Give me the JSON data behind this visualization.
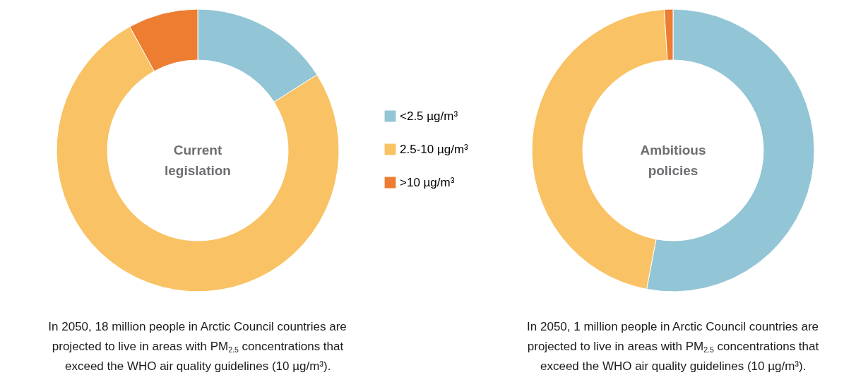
{
  "chart_data": [
    {
      "type": "donut",
      "title": "Current legislation",
      "categories": [
        "<2.5 µg/m³",
        "2.5-10 µg/m³",
        ">10 µg/m³"
      ],
      "values": [
        16,
        76,
        8
      ],
      "colors": [
        "#92c5d5",
        "#f9c264",
        "#ed7d31"
      ],
      "legend": "right",
      "annotations": [
        "In 2050, 18 million people in Arctic Council countries are\nprojected to live in areas with PM$_{2.5}$ concentrations that\nexceed the WHO air quality guidelines (10 µg/m³)."
      ]
    },
    {
      "type": "donut",
      "title": "Ambitious policies",
      "categories": [
        null,
        null,
        null
      ],
      "values": [
        53,
        46,
        1
      ],
      "colors": [
        "#92c5d5",
        "#f9c264",
        "#ed7d31"
      ],
      "legend": false,
      "annotations": [
        "In 2050, 1 million people in Arctic Council countries are\nprojected to live in areas with PM$_{2.5}$ concentrations that\nexceed the WHO air quality guidelines (10 µg/m³)."
      ]
    }
  ]
}
